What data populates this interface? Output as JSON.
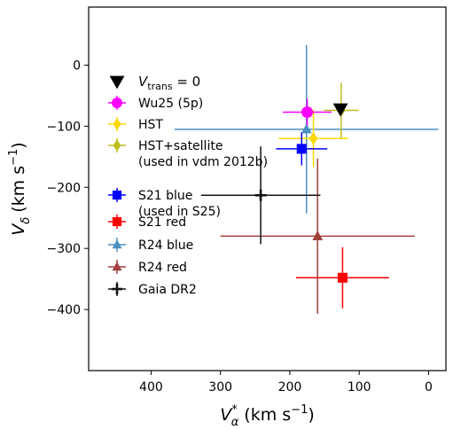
{
  "chart_data": {
    "type": "scatter",
    "title": "",
    "xlabel": {
      "base": "V",
      "sub": "α",
      "sup": "*",
      "unit": "(km s",
      "unit_exp": "−1",
      "unit_close": ")"
    },
    "ylabel": {
      "base": "V",
      "sub": "δ",
      "unit": "(km s",
      "unit_exp": "−1",
      "unit_close": ")"
    },
    "xlim": [
      490,
      -25
    ],
    "ylim": [
      -500,
      95
    ],
    "x_inverted": true,
    "xticks": [
      {
        "value": 400,
        "label": "400"
      },
      {
        "value": 300,
        "label": "300"
      },
      {
        "value": 200,
        "label": "200"
      },
      {
        "value": 100,
        "label": "100"
      },
      {
        "value": 0,
        "label": "0"
      }
    ],
    "yticks": [
      {
        "value": 0,
        "label": "0"
      },
      {
        "value": -100,
        "label": "−100"
      },
      {
        "value": -200,
        "label": "−200"
      },
      {
        "value": -300,
        "label": "−300"
      },
      {
        "value": -400,
        "label": "−400"
      }
    ],
    "grid": false,
    "legend_position": "left",
    "series": [
      {
        "id": "vtrans",
        "legend": "V",
        "legend_sub": "trans",
        "legend_suffix": " = 0",
        "color": "#000000",
        "marker": "triangle-down",
        "points": [
          {
            "x": 127,
            "y": -72
          }
        ]
      },
      {
        "id": "wu25",
        "legend": "Wu25 (5p)",
        "color": "#ff00ff",
        "marker": "circle",
        "points": [
          {
            "x": 175,
            "y": -77,
            "xerr": [
              35,
              35
            ],
            "yerr": [
              22,
              22
            ]
          }
        ]
      },
      {
        "id": "hst",
        "legend": "HST",
        "color": "#ffd700",
        "marker": "diamond",
        "points": [
          {
            "x": 166,
            "y": -120,
            "xerr": [
              50,
              50
            ],
            "yerr": [
              47,
              47
            ]
          }
        ]
      },
      {
        "id": "hst-sat",
        "legend": "HST+satellite",
        "legend_line2": "(used in vdm 2012b)",
        "color": "#bdbd1f",
        "marker": "diamond",
        "points": [
          {
            "x": 126,
            "y": -74,
            "xerr": [
              25,
              25
            ],
            "yerr": [
              45,
              45
            ]
          }
        ]
      },
      {
        "id": "s21-blue",
        "legend": "S21 blue",
        "legend_line2": "(used in S25)",
        "color": "#0000ff",
        "marker": "square",
        "points": [
          {
            "x": 183,
            "y": -137,
            "xerr": [
              37,
              37
            ],
            "yerr": [
              27,
              27
            ]
          }
        ]
      },
      {
        "id": "s21-red",
        "legend": "S21 red",
        "color": "#ff0000",
        "marker": "square",
        "points": [
          {
            "x": 124,
            "y": -348,
            "xerr": [
              67,
              67
            ],
            "yerr": [
              50,
              50
            ]
          }
        ]
      },
      {
        "id": "r24-blue",
        "legend": "R24 blue",
        "color": "#4a8fc1",
        "marker": "triangle-up",
        "points": [
          {
            "x": 176,
            "y": -105,
            "xerr": [
              190,
              190
            ],
            "yerr": [
              138,
              138
            ]
          }
        ]
      },
      {
        "id": "r24-red",
        "legend": "R24 red",
        "color": "#a2403d",
        "marker": "triangle-up",
        "points": [
          {
            "x": 160,
            "y": -280,
            "xerr": [
              140,
              140
            ],
            "yerr": [
              127,
              127
            ]
          }
        ]
      },
      {
        "id": "gaia",
        "legend": "Gaia DR2",
        "color": "#111111",
        "marker": "cross",
        "points": [
          {
            "x": 242,
            "y": -213,
            "xerr": [
              86,
              86
            ],
            "yerr": [
              80,
              80
            ]
          }
        ]
      }
    ]
  }
}
